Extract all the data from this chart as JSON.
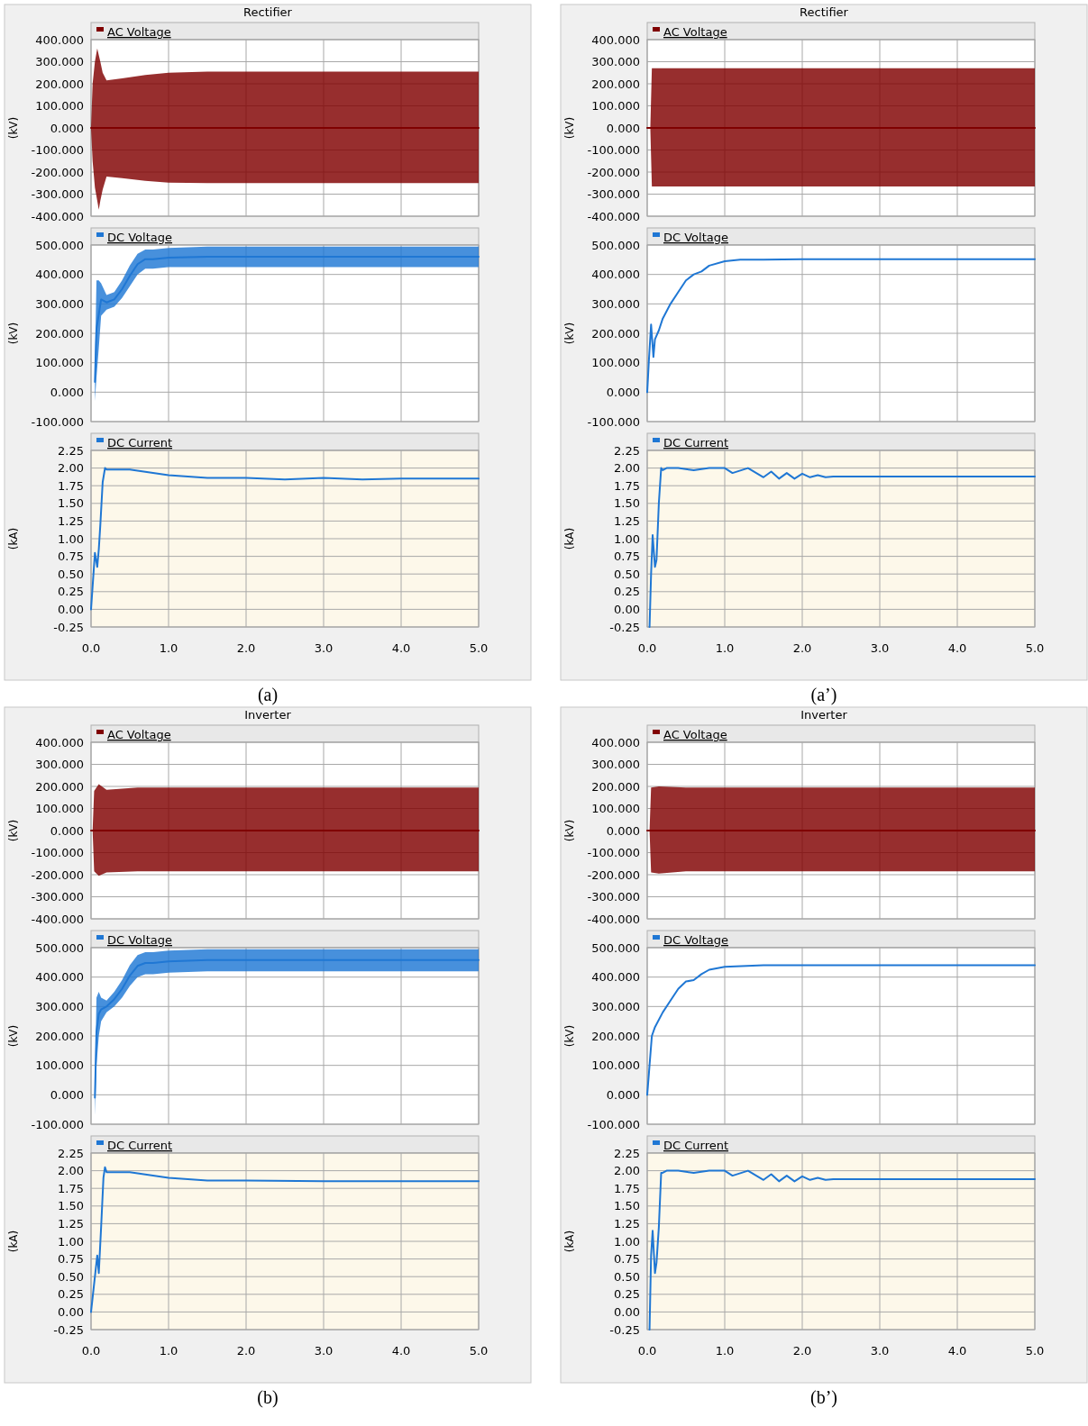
{
  "chart_data": [
    {
      "type": "line",
      "title": "Rectifier",
      "ylabel": "(kV)",
      "legend": "top left",
      "grid": true,
      "tick_labels": "y",
      "xlim": [
        0,
        5
      ],
      "xticks": [
        0,
        1,
        2,
        3,
        4,
        5
      ],
      "ylim": [
        -400,
        400
      ],
      "yticks": [
        {
          "value": -400,
          "label": "-400.000"
        },
        {
          "value": -300,
          "label": "-300.000"
        },
        {
          "value": -200,
          "label": "-200.000"
        },
        {
          "value": -100,
          "label": "-100.000"
        },
        {
          "value": 0,
          "label": "0.000"
        },
        {
          "value": 100,
          "label": "100.000"
        },
        {
          "value": 200,
          "label": "200.000"
        },
        {
          "value": 300,
          "label": "300.000"
        },
        {
          "value": 400,
          "label": "400.000"
        }
      ],
      "series": [
        {
          "name": "AC Voltage",
          "color": "#800000",
          "x": [
            0,
            0.02,
            0.05,
            0.08,
            0.1,
            0.12,
            0.15,
            0.2,
            0.4,
            0.7,
            1.0,
            1.5,
            5.0
          ],
          "values": [
            0,
            0,
            0,
            0,
            0,
            0,
            0,
            0,
            0,
            0,
            0,
            0,
            0
          ],
          "upper": [
            0,
            200,
            300,
            360,
            330,
            300,
            250,
            215,
            225,
            240,
            250,
            255,
            255
          ],
          "lower": [
            0,
            -150,
            -270,
            -330,
            -370,
            -330,
            -280,
            -220,
            -228,
            -240,
            -248,
            -250,
            -250
          ]
        }
      ]
    },
    {
      "type": "line",
      "ylabel": "(kV)",
      "legend": "top left",
      "grid": true,
      "tick_labels": "y",
      "xlim": [
        0,
        5
      ],
      "xticks": [
        0,
        1,
        2,
        3,
        4,
        5
      ],
      "ylim": [
        -100,
        500
      ],
      "yticks": [
        {
          "value": -100,
          "label": "-100.000"
        },
        {
          "value": 0,
          "label": "0.000"
        },
        {
          "value": 100,
          "label": "100.000"
        },
        {
          "value": 200,
          "label": "200.000"
        },
        {
          "value": 300,
          "label": "300.000"
        },
        {
          "value": 400,
          "label": "400.000"
        },
        {
          "value": 500,
          "label": "500.000"
        }
      ],
      "series": [
        {
          "name": "DC Voltage",
          "color": "#1f77d4",
          "x": [
            0.05,
            0.07,
            0.1,
            0.13,
            0.2,
            0.3,
            0.4,
            0.5,
            0.6,
            0.7,
            0.8,
            1.0,
            1.5,
            2.0,
            3.0,
            4.0,
            5.0
          ],
          "values": [
            35,
            215,
            265,
            315,
            305,
            315,
            350,
            395,
            435,
            452,
            452,
            457,
            460,
            460,
            460,
            460,
            460
          ],
          "lower": [
            -30,
            50,
            150,
            260,
            280,
            290,
            320,
            360,
            400,
            420,
            420,
            425,
            425,
            425,
            425,
            425,
            425
          ],
          "upper": [
            100,
            380,
            380,
            370,
            330,
            340,
            380,
            430,
            470,
            485,
            485,
            490,
            495,
            495,
            495,
            495,
            495
          ]
        }
      ]
    },
    {
      "type": "line",
      "ylabel": "(kA)",
      "legend": "top left",
      "grid": true,
      "xlim": [
        0,
        5
      ],
      "xticks": [
        {
          "value": 0,
          "label": "0.0"
        },
        {
          "value": 1,
          "label": "1.0"
        },
        {
          "value": 2,
          "label": "2.0"
        },
        {
          "value": 3,
          "label": "3.0"
        },
        {
          "value": 4,
          "label": "4.0"
        },
        {
          "value": 5,
          "label": "5.0"
        }
      ],
      "ylim": [
        -0.25,
        2.25
      ],
      "yticks": [
        -0.25,
        {
          "value": 0,
          "label": "0.00"
        },
        0.25,
        {
          "value": 0.5,
          "label": "0.50"
        },
        0.75,
        {
          "value": 1,
          "label": "1.00"
        },
        1.25,
        {
          "value": 1.5,
          "label": "1.50"
        },
        1.75,
        {
          "value": 2,
          "label": "2.00"
        },
        2.25
      ],
      "annotations": [
        "(a)"
      ],
      "series": [
        {
          "name": "DC Current",
          "color": "#1f77d4",
          "x": [
            0,
            0.05,
            0.08,
            0.1,
            0.12,
            0.15,
            0.18,
            0.2,
            0.3,
            0.5,
            0.8,
            1.0,
            1.5,
            2.0,
            2.5,
            3.0,
            3.5,
            4.0,
            5.0
          ],
          "values": [
            0,
            0.8,
            0.6,
            0.85,
            1.2,
            1.8,
            2.0,
            1.98,
            1.98,
            1.98,
            1.93,
            1.9,
            1.86,
            1.86,
            1.84,
            1.86,
            1.84,
            1.85,
            1.85
          ]
        }
      ]
    },
    {
      "type": "line",
      "title": "Rectifier",
      "ylabel": "(kV)",
      "legend": "top left",
      "grid": true,
      "tick_labels": "y",
      "xlim": [
        0,
        5
      ],
      "xticks": [
        0,
        1,
        2,
        3,
        4,
        5
      ],
      "ylim": [
        -400,
        400
      ],
      "yticks": [
        {
          "value": -400,
          "label": "-400.000"
        },
        {
          "value": -300,
          "label": "-300.000"
        },
        {
          "value": -200,
          "label": "-200.000"
        },
        {
          "value": -100,
          "label": "-100.000"
        },
        {
          "value": 0,
          "label": "0.000"
        },
        {
          "value": 100,
          "label": "100.000"
        },
        {
          "value": 200,
          "label": "200.000"
        },
        {
          "value": 300,
          "label": "300.000"
        },
        {
          "value": 400,
          "label": "400.000"
        }
      ],
      "series": [
        {
          "name": "AC Voltage",
          "color": "#800000",
          "x": [
            0,
            0.04,
            0.06,
            0.1,
            5.0
          ],
          "values": [
            0,
            0,
            0,
            0,
            0
          ],
          "upper": [
            0,
            0,
            270,
            270,
            270
          ],
          "lower": [
            0,
            0,
            -265,
            -265,
            -265
          ]
        }
      ]
    },
    {
      "type": "line",
      "ylabel": "(kV)",
      "legend": "top left",
      "grid": true,
      "tick_labels": "y",
      "xlim": [
        0,
        5
      ],
      "xticks": [
        0,
        1,
        2,
        3,
        4,
        5
      ],
      "ylim": [
        -100,
        500
      ],
      "yticks": [
        {
          "value": -100,
          "label": "-100.000"
        },
        {
          "value": 0,
          "label": "0.000"
        },
        {
          "value": 100,
          "label": "100.000"
        },
        {
          "value": 200,
          "label": "200.000"
        },
        {
          "value": 300,
          "label": "300.000"
        },
        {
          "value": 400,
          "label": "400.000"
        },
        {
          "value": 500,
          "label": "500.000"
        }
      ],
      "series": [
        {
          "name": "DC Voltage",
          "color": "#1f77d4",
          "x": [
            0,
            0.02,
            0.05,
            0.08,
            0.1,
            0.15,
            0.2,
            0.3,
            0.4,
            0.5,
            0.6,
            0.7,
            0.8,
            1.0,
            1.2,
            1.5,
            2.0,
            2.5,
            5.0
          ],
          "values": [
            0,
            100,
            230,
            120,
            180,
            210,
            250,
            300,
            340,
            380,
            400,
            410,
            430,
            445,
            450,
            450,
            452,
            452,
            452
          ]
        }
      ]
    },
    {
      "type": "line",
      "ylabel": "(kA)",
      "legend": "top left",
      "grid": true,
      "xlim": [
        0,
        5
      ],
      "xticks": [
        {
          "value": 0,
          "label": "0.0"
        },
        {
          "value": 1,
          "label": "1.0"
        },
        {
          "value": 2,
          "label": "2.0"
        },
        {
          "value": 3,
          "label": "3.0"
        },
        {
          "value": 4,
          "label": "4.0"
        },
        {
          "value": 5,
          "label": "5.0"
        }
      ],
      "ylim": [
        -0.25,
        2.25
      ],
      "yticks": [
        -0.25,
        {
          "value": 0,
          "label": "0.00"
        },
        0.25,
        {
          "value": 0.5,
          "label": "0.50"
        },
        0.75,
        {
          "value": 1,
          "label": "1.00"
        },
        1.25,
        {
          "value": 1.5,
          "label": "1.50"
        },
        1.75,
        {
          "value": 2,
          "label": "2.00"
        },
        2.25
      ],
      "annotations": [
        "(a’)"
      ],
      "series": [
        {
          "name": "DC Current",
          "color": "#1f77d4",
          "x": [
            0.03,
            0.05,
            0.07,
            0.1,
            0.12,
            0.15,
            0.18,
            0.2,
            0.25,
            0.4,
            0.6,
            0.8,
            1.0,
            1.1,
            1.3,
            1.5,
            1.6,
            1.7,
            1.8,
            1.9,
            2.0,
            2.1,
            2.2,
            2.3,
            2.4,
            5.0
          ],
          "values": [
            -0.25,
            0.5,
            1.05,
            0.6,
            0.7,
            1.5,
            2.0,
            1.97,
            2.0,
            2.0,
            1.97,
            2.0,
            2.0,
            1.93,
            2.0,
            1.87,
            1.95,
            1.85,
            1.93,
            1.85,
            1.92,
            1.87,
            1.9,
            1.87,
            1.88,
            1.88
          ]
        }
      ]
    },
    {
      "type": "line",
      "title": "Inverter",
      "ylabel": "(kV)",
      "legend": "top left",
      "grid": true,
      "tick_labels": "y",
      "xlim": [
        0,
        5
      ],
      "xticks": [
        0,
        1,
        2,
        3,
        4,
        5
      ],
      "ylim": [
        -400,
        400
      ],
      "yticks": [
        {
          "value": -400,
          "label": "-400.000"
        },
        {
          "value": -300,
          "label": "-300.000"
        },
        {
          "value": -200,
          "label": "-200.000"
        },
        {
          "value": -100,
          "label": "-100.000"
        },
        {
          "value": 0,
          "label": "0.000"
        },
        {
          "value": 100,
          "label": "100.000"
        },
        {
          "value": 200,
          "label": "200.000"
        },
        {
          "value": 300,
          "label": "300.000"
        },
        {
          "value": 400,
          "label": "400.000"
        }
      ],
      "series": [
        {
          "name": "AC Voltage",
          "color": "#800000",
          "x": [
            0,
            0.02,
            0.04,
            0.1,
            0.2,
            0.6,
            5.0
          ],
          "values": [
            0,
            0,
            0,
            0,
            0,
            0,
            0
          ],
          "upper": [
            0,
            0,
            180,
            210,
            185,
            195,
            195
          ],
          "lower": [
            0,
            0,
            -185,
            -205,
            -190,
            -185,
            -185
          ]
        }
      ]
    },
    {
      "type": "line",
      "ylabel": "(kV)",
      "legend": "top left",
      "grid": true,
      "tick_labels": "y",
      "xlim": [
        0,
        5
      ],
      "xticks": [
        0,
        1,
        2,
        3,
        4,
        5
      ],
      "ylim": [
        -100,
        500
      ],
      "yticks": [
        {
          "value": -100,
          "label": "-100.000"
        },
        {
          "value": 0,
          "label": "0.000"
        },
        {
          "value": 100,
          "label": "100.000"
        },
        {
          "value": 200,
          "label": "200.000"
        },
        {
          "value": 300,
          "label": "300.000"
        },
        {
          "value": 400,
          "label": "400.000"
        },
        {
          "value": 500,
          "label": "500.000"
        }
      ],
      "series": [
        {
          "name": "DC Voltage",
          "color": "#1f77d4",
          "x": [
            0.05,
            0.07,
            0.1,
            0.13,
            0.2,
            0.3,
            0.4,
            0.5,
            0.6,
            0.7,
            0.8,
            1.0,
            1.5,
            2.0,
            5.0
          ],
          "values": [
            -10,
            215,
            275,
            290,
            300,
            325,
            360,
            405,
            438,
            448,
            448,
            453,
            458,
            458,
            458
          ],
          "lower": [
            -70,
            100,
            200,
            250,
            280,
            300,
            330,
            370,
            400,
            410,
            410,
            415,
            420,
            420,
            420
          ],
          "upper": [
            50,
            330,
            350,
            330,
            320,
            350,
            390,
            440,
            475,
            485,
            485,
            490,
            495,
            495,
            495
          ]
        }
      ]
    },
    {
      "type": "line",
      "ylabel": "(kA)",
      "legend": "top left",
      "grid": true,
      "xlim": [
        0,
        5
      ],
      "xticks": [
        {
          "value": 0,
          "label": "0.0"
        },
        {
          "value": 1,
          "label": "1.0"
        },
        {
          "value": 2,
          "label": "2.0"
        },
        {
          "value": 3,
          "label": "3.0"
        },
        {
          "value": 4,
          "label": "4.0"
        },
        {
          "value": 5,
          "label": "5.0"
        }
      ],
      "ylim": [
        -0.25,
        2.25
      ],
      "yticks": [
        -0.25,
        {
          "value": 0,
          "label": "0.00"
        },
        0.25,
        {
          "value": 0.5,
          "label": "0.50"
        },
        0.75,
        {
          "value": 1,
          "label": "1.00"
        },
        1.25,
        {
          "value": 1.5,
          "label": "1.50"
        },
        1.75,
        {
          "value": 2,
          "label": "2.00"
        },
        2.25
      ],
      "annotations": [
        "(b)"
      ],
      "series": [
        {
          "name": "DC Current",
          "color": "#1f77d4",
          "x": [
            0,
            0.05,
            0.08,
            0.1,
            0.13,
            0.16,
            0.18,
            0.2,
            0.5,
            0.8,
            1.0,
            1.5,
            2.0,
            3.0,
            5.0
          ],
          "values": [
            0,
            0.5,
            0.8,
            0.55,
            1.2,
            1.9,
            2.05,
            1.98,
            1.98,
            1.93,
            1.9,
            1.86,
            1.86,
            1.85,
            1.85
          ]
        }
      ]
    },
    {
      "type": "line",
      "title": "Inverter",
      "ylabel": "(kV)",
      "legend": "top left",
      "grid": true,
      "tick_labels": "y",
      "xlim": [
        0,
        5
      ],
      "xticks": [
        0,
        1,
        2,
        3,
        4,
        5
      ],
      "ylim": [
        -400,
        400
      ],
      "yticks": [
        {
          "value": -400,
          "label": "-400.000"
        },
        {
          "value": -300,
          "label": "-300.000"
        },
        {
          "value": -200,
          "label": "-200.000"
        },
        {
          "value": -100,
          "label": "-100.000"
        },
        {
          "value": 0,
          "label": "0.000"
        },
        {
          "value": 100,
          "label": "100.000"
        },
        {
          "value": 200,
          "label": "200.000"
        },
        {
          "value": 300,
          "label": "300.000"
        },
        {
          "value": 400,
          "label": "400.000"
        }
      ],
      "series": [
        {
          "name": "AC Voltage",
          "color": "#800000",
          "x": [
            0,
            0.03,
            0.05,
            0.15,
            0.5,
            5.0
          ],
          "values": [
            0,
            0,
            0,
            0,
            0,
            0
          ],
          "upper": [
            0,
            0,
            195,
            200,
            195,
            195
          ],
          "lower": [
            0,
            0,
            -190,
            -195,
            -185,
            -185
          ]
        }
      ]
    },
    {
      "type": "line",
      "ylabel": "(kV)",
      "legend": "top left",
      "grid": true,
      "tick_labels": "y",
      "xlim": [
        0,
        5
      ],
      "xticks": [
        0,
        1,
        2,
        3,
        4,
        5
      ],
      "ylim": [
        -100,
        500
      ],
      "yticks": [
        {
          "value": -100,
          "label": "-100.000"
        },
        {
          "value": 0,
          "label": "0.000"
        },
        {
          "value": 100,
          "label": "100.000"
        },
        {
          "value": 200,
          "label": "200.000"
        },
        {
          "value": 300,
          "label": "300.000"
        },
        {
          "value": 400,
          "label": "400.000"
        },
        {
          "value": 500,
          "label": "500.000"
        }
      ],
      "series": [
        {
          "name": "DC Voltage",
          "color": "#1f77d4",
          "x": [
            0,
            0.03,
            0.06,
            0.1,
            0.2,
            0.3,
            0.4,
            0.5,
            0.6,
            0.7,
            0.8,
            1.0,
            1.5,
            5.0
          ],
          "values": [
            0,
            100,
            200,
            230,
            280,
            320,
            360,
            385,
            390,
            410,
            425,
            435,
            440,
            440
          ]
        }
      ]
    },
    {
      "type": "line",
      "ylabel": "(kA)",
      "legend": "top left",
      "grid": true,
      "xlim": [
        0,
        5
      ],
      "xticks": [
        {
          "value": 0,
          "label": "0.0"
        },
        {
          "value": 1,
          "label": "1.0"
        },
        {
          "value": 2,
          "label": "2.0"
        },
        {
          "value": 3,
          "label": "3.0"
        },
        {
          "value": 4,
          "label": "4.0"
        },
        {
          "value": 5,
          "label": "5.0"
        }
      ],
      "ylim": [
        -0.25,
        2.25
      ],
      "yticks": [
        -0.25,
        {
          "value": 0,
          "label": "0.00"
        },
        0.25,
        {
          "value": 0.5,
          "label": "0.50"
        },
        0.75,
        {
          "value": 1,
          "label": "1.00"
        },
        1.25,
        {
          "value": 1.5,
          "label": "1.50"
        },
        1.75,
        {
          "value": 2,
          "label": "2.00"
        },
        2.25
      ],
      "annotations": [
        "(b’)"
      ],
      "series": [
        {
          "name": "DC Current",
          "color": "#1f77d4",
          "x": [
            0.03,
            0.05,
            0.07,
            0.1,
            0.12,
            0.15,
            0.18,
            0.2,
            0.25,
            0.4,
            0.6,
            0.8,
            1.0,
            1.1,
            1.3,
            1.5,
            1.6,
            1.7,
            1.8,
            1.9,
            2.0,
            2.1,
            2.2,
            2.3,
            2.4,
            5.0
          ],
          "values": [
            -0.25,
            0.8,
            1.15,
            0.55,
            0.7,
            1.2,
            1.97,
            1.97,
            2.0,
            2.0,
            1.97,
            2.0,
            2.0,
            1.93,
            2.0,
            1.87,
            1.95,
            1.85,
            1.93,
            1.85,
            1.92,
            1.87,
            1.9,
            1.87,
            1.88,
            1.88
          ]
        }
      ]
    }
  ]
}
